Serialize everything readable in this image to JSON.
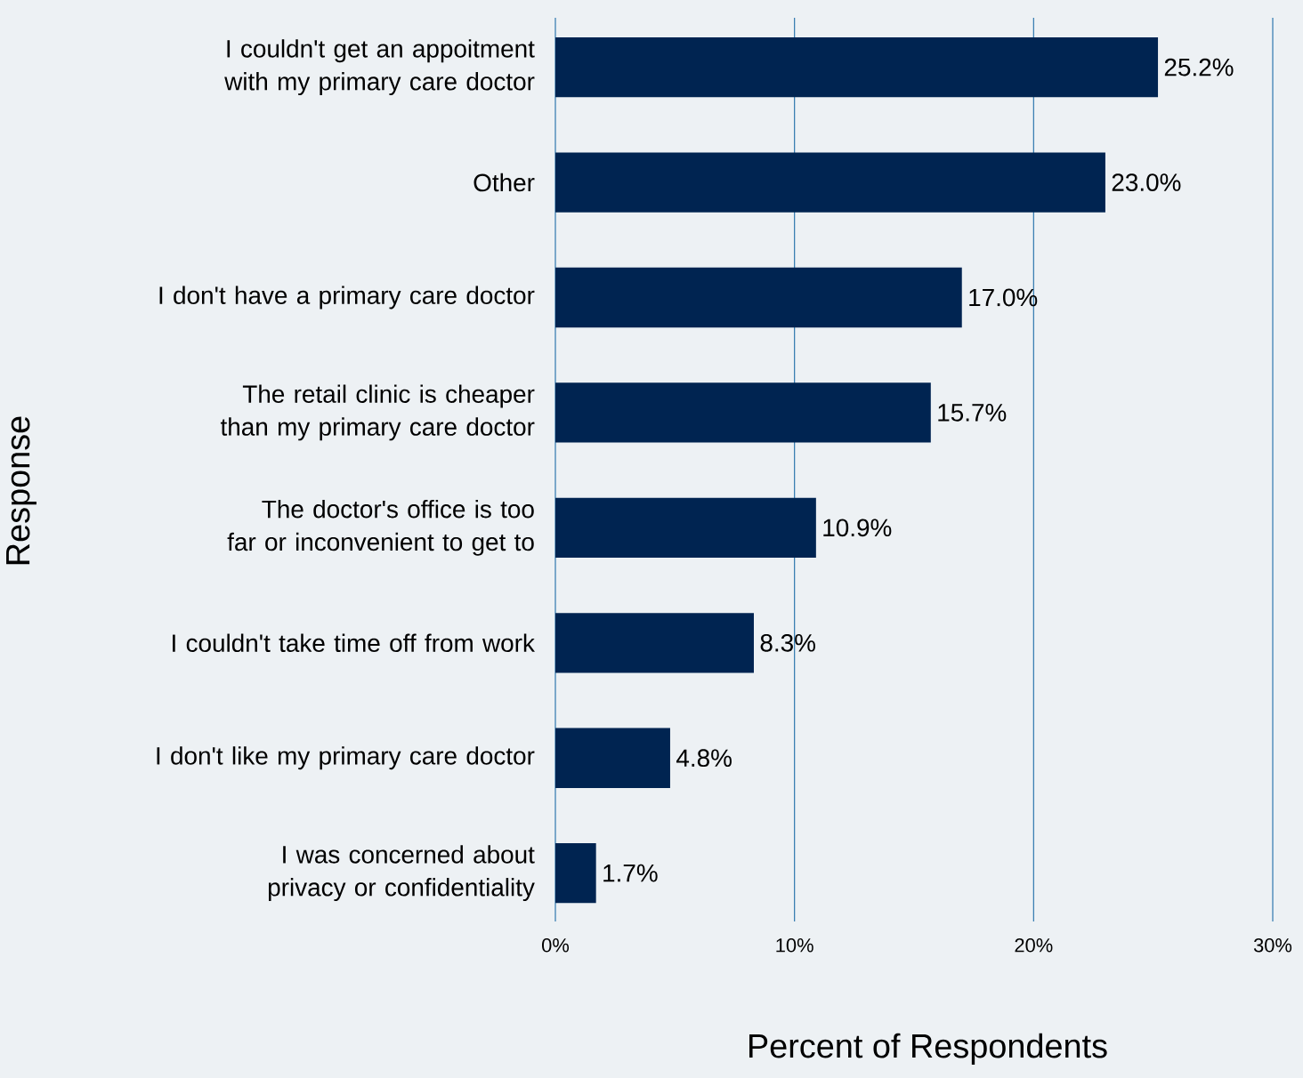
{
  "chart_data": {
    "type": "bar",
    "orientation": "horizontal",
    "categories": [
      "I couldn't get an appoitment with my primary care doctor",
      "Other",
      "I don't have a primary care doctor",
      "The retail clinic is cheaper than my primary care doctor",
      "The doctor's office is too far or inconvenient to get to",
      "I couldn't take time off from work",
      "I don't like my primary care doctor",
      "I was concerned about privacy or confidentiality"
    ],
    "values": [
      25.2,
      23.0,
      17.0,
      15.7,
      10.9,
      8.3,
      4.8,
      1.7
    ],
    "value_labels": [
      "25.2%",
      "23.0%",
      "17.0%",
      "15.7%",
      "10.9%",
      "8.3%",
      "4.8%",
      "1.7%"
    ],
    "color": "#002451",
    "xlabel": "Percent of Respondents",
    "ylabel": "Response",
    "xlim": [
      0,
      30
    ],
    "xticks": [
      {
        "value": 0,
        "label": "0%"
      },
      {
        "value": 10,
        "label": "10%"
      },
      {
        "value": 20,
        "label": "20%"
      },
      {
        "value": 30,
        "label": "30%"
      }
    ],
    "grid": "x"
  }
}
